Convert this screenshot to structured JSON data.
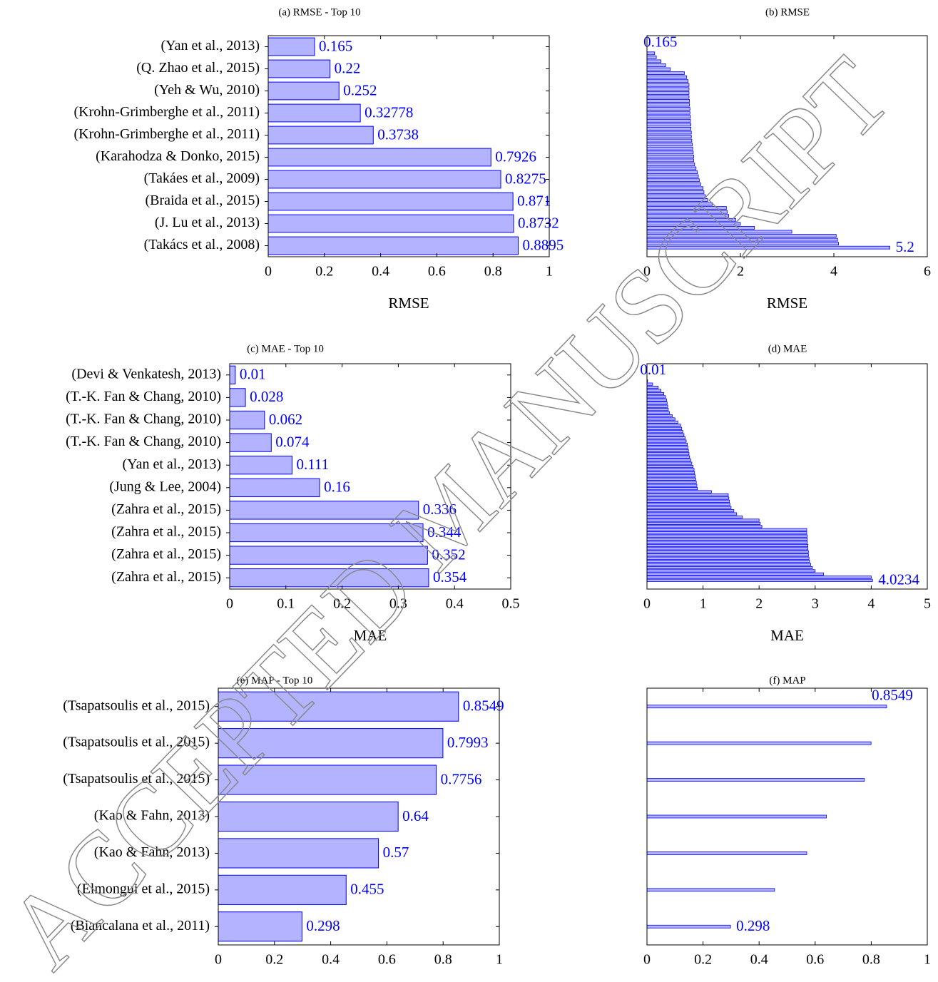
{
  "watermark": "ACCEPTED MANUSCRIPT",
  "chart_data": [
    {
      "type": "bar",
      "orientation": "horizontal",
      "title": "(a) RMSE - Top 10",
      "x_label": "RMSE",
      "categories": [
        "(Yan et al., 2013)",
        "(Q. Zhao et al., 2015)",
        "(Yeh & Wu, 2010)",
        "(Krohn-Grimberghe et al., 2011)",
        "(Krohn-Grimberghe et al., 2011)",
        "(Karahodza & Donko, 2015)",
        "(Takáes et al., 2009)",
        "(Braida et al., 2015)",
        "(J. Lu et al., 2013)",
        "(Takács et al., 2008)"
      ],
      "values": [
        0.165,
        0.22,
        0.252,
        0.32778,
        0.3738,
        0.7926,
        0.8275,
        0.871,
        0.8732,
        0.8895
      ],
      "xlim": [
        0,
        1
      ],
      "xticks": [
        0,
        0.2,
        0.4,
        0.6,
        0.8,
        1
      ],
      "color": "#b3b3ff",
      "edge_color": "#0000ff",
      "label_color": "#0000ff"
    },
    {
      "type": "bar",
      "orientation": "horizontal",
      "title": "(b) RMSE",
      "x_label": "RMSE",
      "values": [
        0.165,
        0.2,
        0.3,
        0.4,
        0.5,
        0.8,
        0.85,
        0.88,
        0.9,
        0.9,
        0.9,
        0.9,
        0.91,
        0.91,
        0.92,
        0.92,
        0.93,
        0.93,
        0.94,
        0.94,
        0.95,
        0.95,
        0.96,
        0.97,
        0.98,
        0.99,
        1.0,
        1.0,
        1.02,
        1.05,
        1.08,
        1.1,
        1.12,
        1.15,
        1.2,
        1.22,
        1.25,
        1.3,
        1.4,
        1.7,
        1.72,
        1.75,
        1.9,
        2.0,
        2.3,
        3.1,
        4.05,
        4.08,
        4.1,
        5.2
      ],
      "xlim": [
        0,
        6
      ],
      "xticks": [
        0,
        2,
        4,
        6
      ],
      "color": "#b3b3ff",
      "edge_color": "#0000ff",
      "label_color": "#0000ff"
    },
    {
      "type": "bar",
      "orientation": "horizontal",
      "title": "(c) MAE - Top 10",
      "x_label": "MAE",
      "categories": [
        "(Devi & Venkatesh, 2013)",
        "(T.-K. Fan & Chang, 2010)",
        "(T.-K. Fan & Chang, 2010)",
        "(T.-K. Fan & Chang, 2010)",
        "(Yan et al., 2013)",
        "(Jung & Lee, 2004)",
        "(Zahra et al., 2015)",
        "(Zahra et al., 2015)",
        "(Zahra et al., 2015)",
        "(Zahra et al., 2015)"
      ],
      "values": [
        0.01,
        0.028,
        0.062,
        0.074,
        0.111,
        0.16,
        0.336,
        0.344,
        0.352,
        0.354
      ],
      "xlim": [
        0,
        0.5
      ],
      "xticks": [
        0,
        0.1,
        0.2,
        0.3,
        0.4,
        0.5
      ],
      "color": "#b3b3ff",
      "edge_color": "#0000ff",
      "label_color": "#0000ff"
    },
    {
      "type": "bar",
      "orientation": "horizontal",
      "title": "(d) MAE",
      "x_label": "MAE",
      "values": [
        0.01,
        0.1,
        0.2,
        0.25,
        0.3,
        0.33,
        0.35,
        0.36,
        0.37,
        0.38,
        0.4,
        0.45,
        0.5,
        0.55,
        0.6,
        0.62,
        0.64,
        0.66,
        0.68,
        0.7,
        0.72,
        0.73,
        0.74,
        0.75,
        0.76,
        0.78,
        0.8,
        0.82,
        0.84,
        0.85,
        0.86,
        0.87,
        0.88,
        0.89,
        0.9,
        1.15,
        1.45,
        1.46,
        1.47,
        1.48,
        1.5,
        1.55,
        1.6,
        1.7,
        2.0,
        2.02,
        2.05,
        2.85,
        2.85,
        2.86,
        2.86,
        2.86,
        2.87,
        2.87,
        2.88,
        2.88,
        2.89,
        2.9,
        2.92,
        2.95,
        3.0,
        3.15,
        4.0,
        4.0234
      ],
      "xlim": [
        0,
        5
      ],
      "xticks": [
        0,
        1,
        2,
        3,
        4,
        5
      ],
      "color": "#b3b3ff",
      "edge_color": "#0000ff",
      "label_color": "#0000ff"
    },
    {
      "type": "bar",
      "orientation": "horizontal",
      "title": "(e) MAP - Top 10",
      "x_label": "MAP",
      "categories": [
        "(Tsapatsoulis et al., 2015)",
        "(Tsapatsoulis et al., 2015)",
        "(Tsapatsoulis et al., 2015)",
        "(Kao & Fahn, 2013)",
        "(Kao & Fahn, 2013)",
        "(Elmongui et al., 2015)",
        "(Biancalana et al., 2011)"
      ],
      "values": [
        0.8549,
        0.7993,
        0.7756,
        0.64,
        0.57,
        0.455,
        0.298
      ],
      "xlim": [
        0,
        1
      ],
      "xticks": [
        0,
        0.2,
        0.4,
        0.6,
        0.8,
        1
      ],
      "color": "#b3b3ff",
      "edge_color": "#0000ff",
      "label_color": "#0000ff"
    },
    {
      "type": "bar",
      "orientation": "horizontal",
      "title": "(f) MAP",
      "x_label": "MAP",
      "values": [
        0.8549,
        0.7993,
        0.7756,
        0.64,
        0.57,
        0.455,
        0.298
      ],
      "xlim": [
        0,
        1
      ],
      "xticks": [
        0,
        0.2,
        0.4,
        0.6,
        0.8,
        1
      ],
      "color": "#b3b3ff",
      "edge_color": "#0000ff",
      "label_color": "#0000ff"
    }
  ]
}
